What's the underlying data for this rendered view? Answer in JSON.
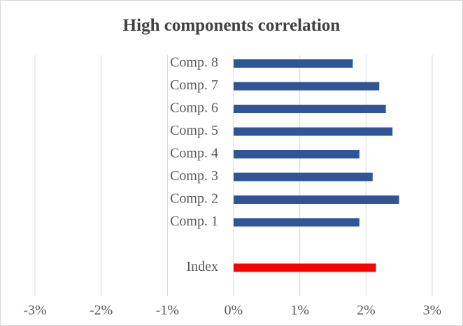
{
  "chart_data": {
    "type": "bar",
    "orientation": "horizontal",
    "title": "High components correlation",
    "xlabel": "",
    "ylabel": "",
    "xlim": [
      -3,
      3
    ],
    "x_ticks": [
      -3,
      -2,
      -1,
      0,
      1,
      2,
      3
    ],
    "x_tick_labels": [
      "-3%",
      "-2%",
      "-1%",
      "0%",
      "1%",
      "2%",
      "3%"
    ],
    "grid": "vertical major gridlines",
    "legend": "none",
    "categories": [
      "Comp. 8",
      "Comp. 7",
      "Comp. 6",
      "Comp. 5",
      "Comp. 4",
      "Comp. 3",
      "Comp. 2",
      "Comp. 1",
      "",
      "Index"
    ],
    "values": [
      1.8,
      2.2,
      2.3,
      2.4,
      1.9,
      2.1,
      2.5,
      1.9,
      null,
      2.15
    ],
    "colors": [
      "#2f5597",
      "#2f5597",
      "#2f5597",
      "#2f5597",
      "#2f5597",
      "#2f5597",
      "#2f5597",
      "#2f5597",
      "#2f5597",
      "#ff0000"
    ],
    "unit": "%"
  },
  "colors": {
    "components_bar": "#2f5597",
    "index_bar": "#ff0000",
    "gridline": "#d9d9d9",
    "text": "#595959",
    "title": "#404040"
  }
}
